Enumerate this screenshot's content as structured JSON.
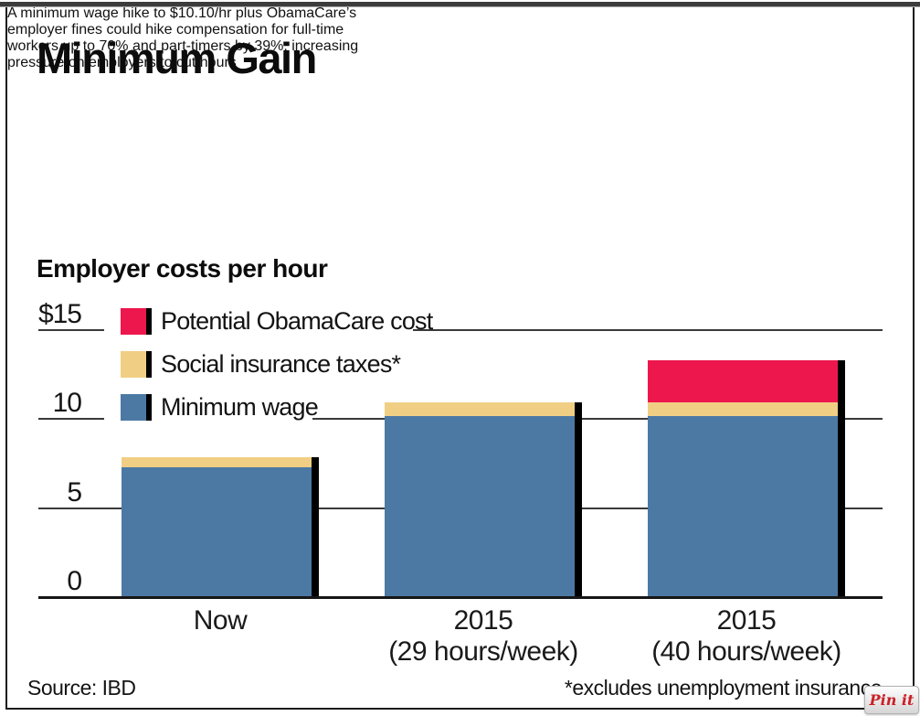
{
  "header": {
    "title": "Minimum Gain",
    "subtitle_lines": [
      "A minimum wage hike to $10.10/hr plus ObamaCare’s",
      "employer fines could hike compensation for full-time",
      "workers up to 70% and part-timers by 39%, increasing",
      "pressure on employers to cut hours"
    ],
    "section_heading": "Employer costs per hour"
  },
  "chart_data": {
    "type": "bar",
    "stacked": true,
    "title": "Employer costs per hour",
    "xlabel": "",
    "ylabel": "Employer costs per hour ($)",
    "ylim": [
      0,
      15
    ],
    "grid": true,
    "legend_position": "top-left-inside",
    "categories": [
      {
        "label": "Now",
        "sublabel": ""
      },
      {
        "label": "2015",
        "sublabel": "(29 hours/week)"
      },
      {
        "label": "2015",
        "sublabel": "(40 hours/week)"
      }
    ],
    "series": [
      {
        "name": "Minimum wage",
        "color": "#4C79A4",
        "values": [
          7.25,
          10.1,
          10.1
        ]
      },
      {
        "name": "Social insurance taxes*",
        "color": "#F0CF84",
        "values": [
          0.55,
          0.77,
          0.77
        ]
      },
      {
        "name": "Potential ObamaCare cost",
        "color": "#ED174D",
        "values": [
          0,
          0,
          2.4
        ]
      }
    ],
    "totals": [
      7.8,
      10.87,
      13.27
    ],
    "yticks": [
      {
        "value": 0,
        "label": "0"
      },
      {
        "value": 5,
        "label": "5"
      },
      {
        "value": 10,
        "label": "10"
      },
      {
        "value": 15,
        "label": "$15"
      }
    ]
  },
  "footer": {
    "source": "Source: IBD",
    "footnote": "*excludes unemployment insurance"
  },
  "pin_button": {
    "label": "Pin it"
  },
  "colors": {
    "bar_shadow": "#000000",
    "gridline": "#3A3A3A",
    "frame_border": "#1A1A1A",
    "top_strip": "#3C3C3C",
    "pin_red": "#CB1F27"
  }
}
